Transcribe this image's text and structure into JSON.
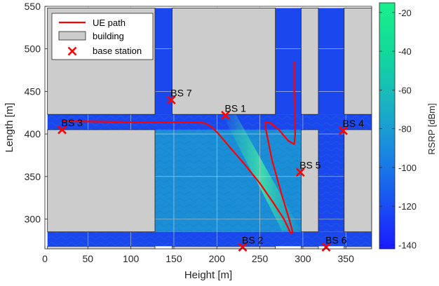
{
  "chart_data": {
    "type": "scatter",
    "xlabel": "Height [m]",
    "ylabel": "Length [m]",
    "xlim": [
      0,
      380
    ],
    "ylim": [
      265,
      550
    ],
    "x_ticks": [
      "0",
      "50",
      "100",
      "150",
      "200",
      "250",
      "300",
      "350"
    ],
    "y_ticks": [
      "300",
      "350",
      "400",
      "450",
      "500",
      "550"
    ],
    "grid": true,
    "legend": {
      "placement": "top-left",
      "entries": [
        {
          "label": "UE path",
          "color": "#ff0000",
          "marker": "line"
        },
        {
          "label": "building",
          "color": "#cccccc",
          "marker": "patch"
        },
        {
          "label": "base station",
          "color": "#ff0000",
          "marker": "x"
        }
      ]
    },
    "colorbar": {
      "label": "RSRP [dBm]",
      "range": [
        -142,
        -15
      ],
      "ticks": [
        "-20",
        "-40",
        "-60",
        "-80",
        "-100",
        "-120",
        "-140"
      ],
      "colors": [
        "#1a1aff",
        "#1a55f2",
        "#1a8ae0",
        "#19b5c0",
        "#12d99a",
        "#19f08c"
      ]
    },
    "buildings": [
      {
        "x": [
          3,
          128
        ],
        "y": [
          423,
          548
        ]
      },
      {
        "x": [
          148,
          268
        ],
        "y": [
          423,
          548
        ]
      },
      {
        "x": [
          298,
          318
        ],
        "y": [
          423,
          548
        ]
      },
      {
        "x": [
          348,
          380
        ],
        "y": [
          423,
          548
        ]
      },
      {
        "x": [
          3,
          128
        ],
        "y": [
          285,
          405
        ]
      },
      {
        "x": [
          298,
          318
        ],
        "y": [
          285,
          405
        ]
      },
      {
        "x": [
          348,
          380
        ],
        "y": [
          285,
          405
        ]
      },
      {
        "x": [
          3,
          128
        ],
        "y": [
          263,
          268
        ]
      },
      {
        "x": [
          148,
          268
        ],
        "y": [
          263,
          268
        ]
      },
      {
        "x": [
          298,
          318
        ],
        "y": [
          263,
          268
        ]
      },
      {
        "x": [
          348,
          380
        ],
        "y": [
          263,
          268
        ]
      }
    ],
    "coverage_regions": [
      {
        "x": [
          128,
          298
        ],
        "y": [
          285,
          423
        ]
      },
      {
        "x": [
          318,
          348
        ],
        "y": [
          285,
          423
        ]
      },
      {
        "x": [
          3,
          380
        ],
        "y": [
          405,
          423
        ]
      },
      {
        "x": [
          128,
          148
        ],
        "y": [
          423,
          548
        ]
      },
      {
        "x": [
          268,
          298
        ],
        "y": [
          423,
          548
        ]
      },
      {
        "x": [
          318,
          348
        ],
        "y": [
          423,
          548
        ]
      },
      {
        "x": [
          3,
          380
        ],
        "y": [
          268,
          285
        ]
      }
    ],
    "ue_path": {
      "name": "UE path",
      "x": [
        20,
        60,
        100,
        130,
        160,
        185,
        193,
        202,
        212,
        230,
        250,
        265,
        278,
        286,
        288,
        284,
        275,
        264,
        257,
        256,
        262,
        272,
        283,
        290,
        291,
        290,
        290
      ],
      "y": [
        415,
        414.5,
        414,
        414,
        414,
        413,
        409,
        400,
        388,
        367,
        342,
        320,
        300,
        283,
        285,
        300,
        330,
        370,
        405,
        414,
        413,
        405,
        392,
        388,
        400,
        450,
        485
      ]
    },
    "base_stations": [
      {
        "label": "BS 1",
        "x": 210,
        "y": 422
      },
      {
        "label": "BS 2",
        "x": 230,
        "y": 267
      },
      {
        "label": "BS 3",
        "x": 20,
        "y": 405
      },
      {
        "label": "BS 4",
        "x": 347,
        "y": 404
      },
      {
        "label": "BS 5",
        "x": 297,
        "y": 355
      },
      {
        "label": "BS 6",
        "x": 327,
        "y": 267
      },
      {
        "label": "BS 7",
        "x": 147,
        "y": 440
      }
    ]
  }
}
